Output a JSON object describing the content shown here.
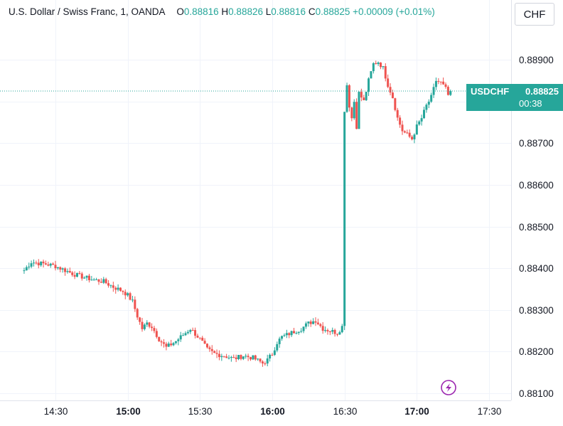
{
  "header": {
    "symbol_name": "U.S. Dollar / Swiss Franc, 1, OANDA",
    "open_key": "O",
    "open": "0.88816",
    "high_key": "H",
    "high": "0.88826",
    "low_key": "L",
    "low": "0.88816",
    "close_key": "C",
    "close": "0.88825",
    "change": "+0.00009 (+0.01%)"
  },
  "currency_button": "CHF",
  "price_tag": {
    "symbol": "USDCHF",
    "price": "0.88825",
    "countdown": "00:38"
  },
  "colors": {
    "up": "#26a69a",
    "down": "#ef5350",
    "grid": "#f0f3fa",
    "axis_text": "#131722",
    "event_icon": "#9c27b0"
  },
  "event_icon": "lightning-icon",
  "chart_data": {
    "type": "candlestick",
    "title": "U.S. Dollar / Swiss Franc, 1, OANDA",
    "xlabel": "",
    "ylabel": "",
    "ylim": [
      0.88095,
      0.89005
    ],
    "y_ticks": [
      "0.88900",
      "0.88800",
      "0.88700",
      "0.88600",
      "0.88500",
      "0.88400",
      "0.88300",
      "0.88200",
      "0.88100"
    ],
    "x_ticks": [
      "14:30",
      "15:00",
      "15:30",
      "16:00",
      "16:30",
      "17:00",
      "17:30"
    ],
    "last_price": 0.88825,
    "grid": true,
    "close_series": {
      "x": [
        "14:17",
        "14:20",
        "14:23",
        "14:26",
        "14:30",
        "14:34",
        "14:38",
        "14:42",
        "14:46",
        "14:50",
        "14:54",
        "14:58",
        "15:00",
        "15:02",
        "15:04",
        "15:06",
        "15:08",
        "15:10",
        "15:13",
        "15:16",
        "15:20",
        "15:24",
        "15:26",
        "15:30",
        "15:33",
        "15:36",
        "15:40",
        "15:44",
        "15:48",
        "15:52",
        "15:56",
        "15:58",
        "16:00",
        "16:02",
        "16:04",
        "16:06",
        "16:09",
        "16:12",
        "16:15",
        "16:18",
        "16:21",
        "16:24",
        "16:27",
        "16:29",
        "16:30",
        "16:31",
        "16:32",
        "16:33",
        "16:34",
        "16:35",
        "16:36",
        "16:38",
        "16:40",
        "16:42",
        "16:44",
        "16:46",
        "16:48",
        "16:50",
        "16:52",
        "16:54",
        "16:56",
        "16:58",
        "17:00",
        "17:02",
        "17:04",
        "17:06",
        "17:08",
        "17:10",
        "17:12",
        "17:13",
        "17:14"
      ],
      "values": [
        0.88395,
        0.88415,
        0.88412,
        0.8841,
        0.88405,
        0.88395,
        0.88385,
        0.88378,
        0.88372,
        0.88368,
        0.88355,
        0.88345,
        0.88335,
        0.8832,
        0.88285,
        0.88255,
        0.88268,
        0.8826,
        0.8823,
        0.8821,
        0.88225,
        0.88245,
        0.88255,
        0.8823,
        0.88205,
        0.88195,
        0.8819,
        0.88183,
        0.8819,
        0.88185,
        0.88172,
        0.8818,
        0.88195,
        0.88222,
        0.88235,
        0.8824,
        0.88248,
        0.88255,
        0.88268,
        0.88275,
        0.88255,
        0.8825,
        0.88245,
        0.8826,
        0.8878,
        0.8884,
        0.8879,
        0.8876,
        0.888,
        0.8874,
        0.8882,
        0.888,
        0.8885,
        0.8889,
        0.88895,
        0.8888,
        0.8884,
        0.8881,
        0.8876,
        0.8873,
        0.8872,
        0.8871,
        0.8874,
        0.8876,
        0.8879,
        0.8881,
        0.8885,
        0.88845,
        0.8883,
        0.88815,
        0.88825
      ]
    }
  }
}
